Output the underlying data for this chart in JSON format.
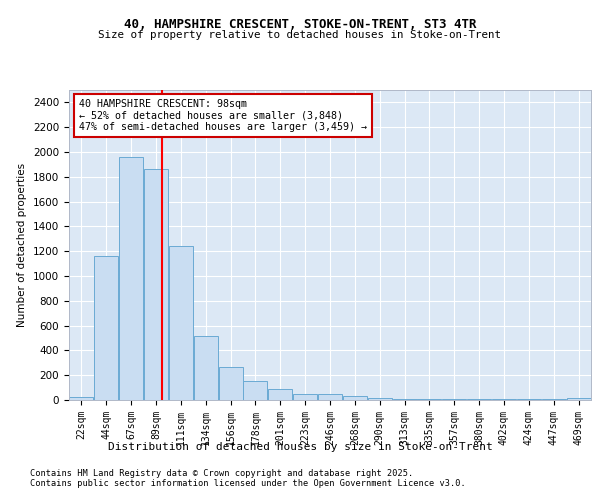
{
  "title1": "40, HAMPSHIRE CRESCENT, STOKE-ON-TRENT, ST3 4TR",
  "title2": "Size of property relative to detached houses in Stoke-on-Trent",
  "xlabel": "Distribution of detached houses by size in Stoke-on-Trent",
  "ylabel": "Number of detached properties",
  "bar_labels": [
    "22sqm",
    "44sqm",
    "67sqm",
    "89sqm",
    "111sqm",
    "134sqm",
    "156sqm",
    "178sqm",
    "201sqm",
    "223sqm",
    "246sqm",
    "268sqm",
    "290sqm",
    "313sqm",
    "335sqm",
    "357sqm",
    "380sqm",
    "402sqm",
    "424sqm",
    "447sqm",
    "469sqm"
  ],
  "bar_values": [
    25,
    1160,
    1960,
    1860,
    1240,
    520,
    270,
    155,
    90,
    45,
    45,
    30,
    20,
    10,
    5,
    5,
    5,
    5,
    5,
    5,
    20
  ],
  "bar_color": "#c9ddf2",
  "bar_edgecolor": "#6aaad4",
  "red_line_x": 3.75,
  "annotation_line1": "40 HAMPSHIRE CRESCENT: 98sqm",
  "annotation_line2": "← 52% of detached houses are smaller (3,848)",
  "annotation_line3": "47% of semi-detached houses are larger (3,459) →",
  "annotation_box_color": "#ffffff",
  "annotation_box_edgecolor": "#cc0000",
  "ylim": [
    0,
    2500
  ],
  "yticks": [
    0,
    200,
    400,
    600,
    800,
    1000,
    1200,
    1400,
    1600,
    1800,
    2000,
    2200,
    2400
  ],
  "background_color": "#dce8f5",
  "grid_color": "#ffffff",
  "footer1": "Contains HM Land Registry data © Crown copyright and database right 2025.",
  "footer2": "Contains public sector information licensed under the Open Government Licence v3.0."
}
